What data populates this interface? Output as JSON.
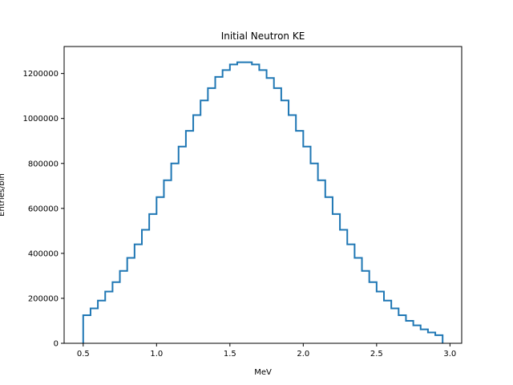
{
  "chart_data": {
    "type": "histogram",
    "title": "Initial Neutron KE",
    "xlabel": "MeV",
    "ylabel": "Entries/bin",
    "xlim": [
      0.37,
      3.08
    ],
    "ylim": [
      0,
      1320000
    ],
    "xticks": [
      0.5,
      1.0,
      1.5,
      2.0,
      2.5,
      3.0
    ],
    "xtick_labels": [
      "0.5",
      "1.0",
      "1.5",
      "2.0",
      "2.5",
      "3.0"
    ],
    "yticks": [
      0,
      200000,
      400000,
      600000,
      800000,
      1000000,
      1200000
    ],
    "ytick_labels": [
      "0",
      "200000",
      "400000",
      "600000",
      "800000",
      "1000000",
      "1200000"
    ],
    "grid": false,
    "line_color": "#1f77b4",
    "bin_start": 0.5,
    "bin_width": 0.05,
    "values": [
      125000,
      155000,
      190000,
      230000,
      272000,
      322000,
      380000,
      440000,
      505000,
      575000,
      650000,
      725000,
      800000,
      875000,
      945000,
      1015000,
      1080000,
      1135000,
      1185000,
      1215000,
      1240000,
      1250000,
      1250000,
      1240000,
      1215000,
      1180000,
      1135000,
      1080000,
      1015000,
      945000,
      875000,
      800000,
      725000,
      650000,
      575000,
      505000,
      440000,
      380000,
      322000,
      272000,
      230000,
      190000,
      155000,
      125000,
      100000,
      80000,
      62000,
      48000,
      36000
    ]
  }
}
